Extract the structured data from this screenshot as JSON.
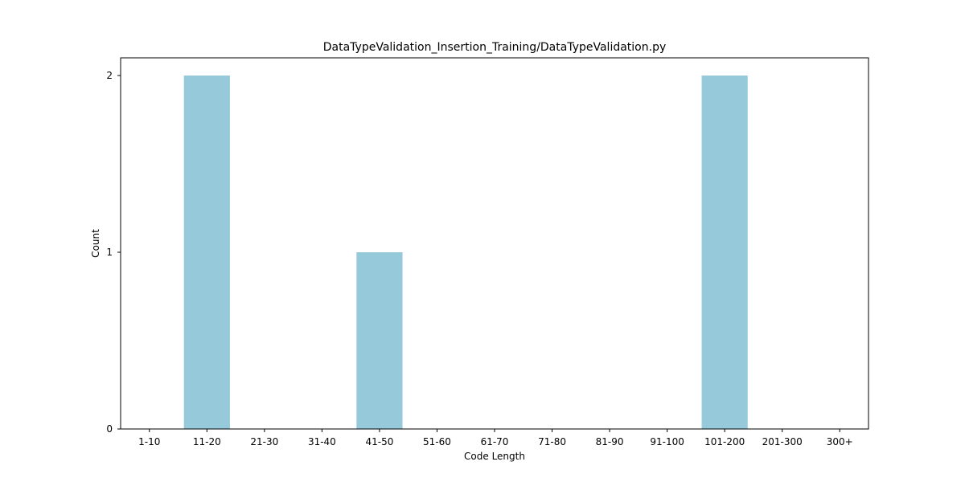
{
  "chart_data": {
    "type": "bar",
    "title": "DataTypeValidation_Insertion_Training/DataTypeValidation.py",
    "xlabel": "Code Length",
    "ylabel": "Count",
    "categories": [
      "1-10",
      "11-20",
      "21-30",
      "31-40",
      "41-50",
      "51-60",
      "61-70",
      "71-80",
      "81-90",
      "91-100",
      "101-200",
      "201-300",
      "300+"
    ],
    "values": [
      0,
      2,
      0,
      0,
      1,
      0,
      0,
      0,
      0,
      0,
      2,
      0,
      0
    ],
    "ylim": [
      0,
      2.1
    ],
    "yticks": [
      0,
      1,
      2
    ],
    "grid": false,
    "colors": {
      "bar": "#96cadb",
      "axes": "#000000",
      "background": "#ffffff"
    }
  }
}
